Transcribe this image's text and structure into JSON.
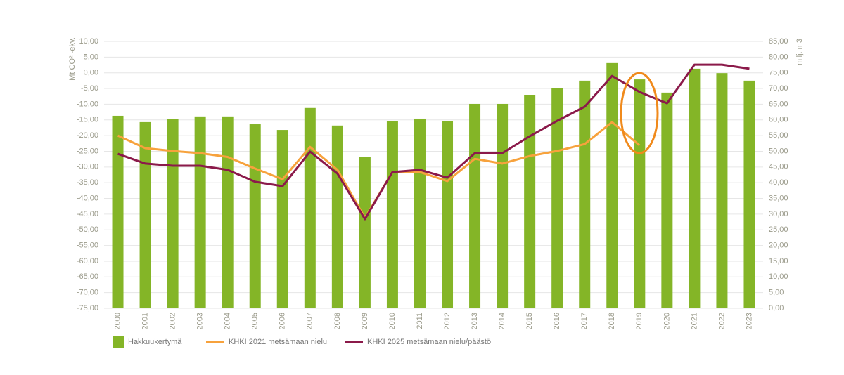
{
  "chart_data": {
    "type": "bar_line",
    "categories": [
      "2000",
      "2001",
      "2002",
      "2003",
      "2004",
      "2005",
      "2006",
      "2007",
      "2008",
      "2009",
      "2010",
      "2011",
      "2012",
      "2013",
      "2014",
      "2015",
      "2016",
      "2017",
      "2018",
      "2019",
      "2020",
      "2021",
      "2022",
      "2023"
    ],
    "ylabel": "Mt CO² -ekv.",
    "y2label": "milj. m3",
    "ylim": [
      -75,
      10
    ],
    "yticks": [
      {
        "value": 10,
        "label": "10,00"
      },
      {
        "value": 5,
        "label": "5,00"
      },
      {
        "value": 0,
        "label": "0,00"
      },
      {
        "value": -5,
        "label": "-5,00"
      },
      {
        "value": -10,
        "label": "-10,00"
      },
      {
        "value": -15,
        "label": "-15,00"
      },
      {
        "value": -20,
        "label": "-20,00"
      },
      {
        "value": -25,
        "label": "-25,00"
      },
      {
        "value": -30,
        "label": "-30,00"
      },
      {
        "value": -35,
        "label": "-35,00"
      },
      {
        "value": -40,
        "label": "-40,00"
      },
      {
        "value": -45,
        "label": "-45,00"
      },
      {
        "value": -50,
        "label": "-50,00"
      },
      {
        "value": -55,
        "label": "-55,00"
      },
      {
        "value": -60,
        "label": "-60,00"
      },
      {
        "value": -65,
        "label": "-65,00"
      },
      {
        "value": -70,
        "label": "-70,00"
      },
      {
        "value": -75,
        "label": "-75,00"
      }
    ],
    "y2lim": [
      0,
      85
    ],
    "y2ticks": [
      {
        "value": 85,
        "label": "85,00"
      },
      {
        "value": 80,
        "label": "80,00"
      },
      {
        "value": 75,
        "label": "75,00"
      },
      {
        "value": 70,
        "label": "70,00"
      },
      {
        "value": 65,
        "label": "65,00"
      },
      {
        "value": 60,
        "label": "60,00"
      },
      {
        "value": 55,
        "label": "55,00"
      },
      {
        "value": 50,
        "label": "50,00"
      },
      {
        "value": 45,
        "label": "45,00"
      },
      {
        "value": 40,
        "label": "40,00"
      },
      {
        "value": 35,
        "label": "35,00"
      },
      {
        "value": 30,
        "label": "30,00"
      },
      {
        "value": 25,
        "label": "25,00"
      },
      {
        "value": 20,
        "label": "20,00"
      },
      {
        "value": 15,
        "label": "15,00"
      },
      {
        "value": 10,
        "label": "10,00"
      },
      {
        "value": 5,
        "label": "5,00"
      },
      {
        "value": 0,
        "label": "0,00"
      }
    ],
    "grid": true,
    "series": [
      {
        "name": "Hakkuukertymä",
        "type": "bar",
        "axis": "y2",
        "color": "#84b527",
        "values": [
          61.3,
          59.3,
          60.2,
          61.1,
          61.1,
          58.6,
          56.8,
          63.8,
          58.2,
          48.1,
          59.5,
          60.4,
          59.7,
          65.1,
          65.1,
          68.0,
          70.2,
          72.5,
          78.1,
          72.9,
          68.7,
          76.3,
          74.9,
          72.5
        ]
      },
      {
        "name": "KHKI 2021 metsämaan nielu",
        "type": "line",
        "axis": "y",
        "color": "#f7a23c",
        "values": [
          -20.0,
          -24.0,
          -24.9,
          -25.6,
          -26.8,
          -30.5,
          -33.9,
          -23.6,
          -30.9,
          -46.2,
          -31.6,
          -31.6,
          -34.5,
          -27.4,
          -28.9,
          -26.5,
          -24.9,
          -22.7,
          -15.7,
          -23.1,
          null,
          null,
          null,
          null
        ]
      },
      {
        "name": "KHKI 2025 metsämaan nielu/päästö",
        "type": "line",
        "axis": "y",
        "color": "#8b1a4a",
        "values": [
          -25.8,
          -28.9,
          -29.6,
          -29.6,
          -30.9,
          -34.7,
          -36.1,
          -25.1,
          -32.1,
          -46.6,
          -31.6,
          -30.9,
          -33.4,
          -25.6,
          -25.6,
          -20.2,
          -15.3,
          -10.8,
          -1.0,
          -6.1,
          -9.7,
          2.6,
          2.6,
          1.3
        ]
      }
    ]
  }
}
